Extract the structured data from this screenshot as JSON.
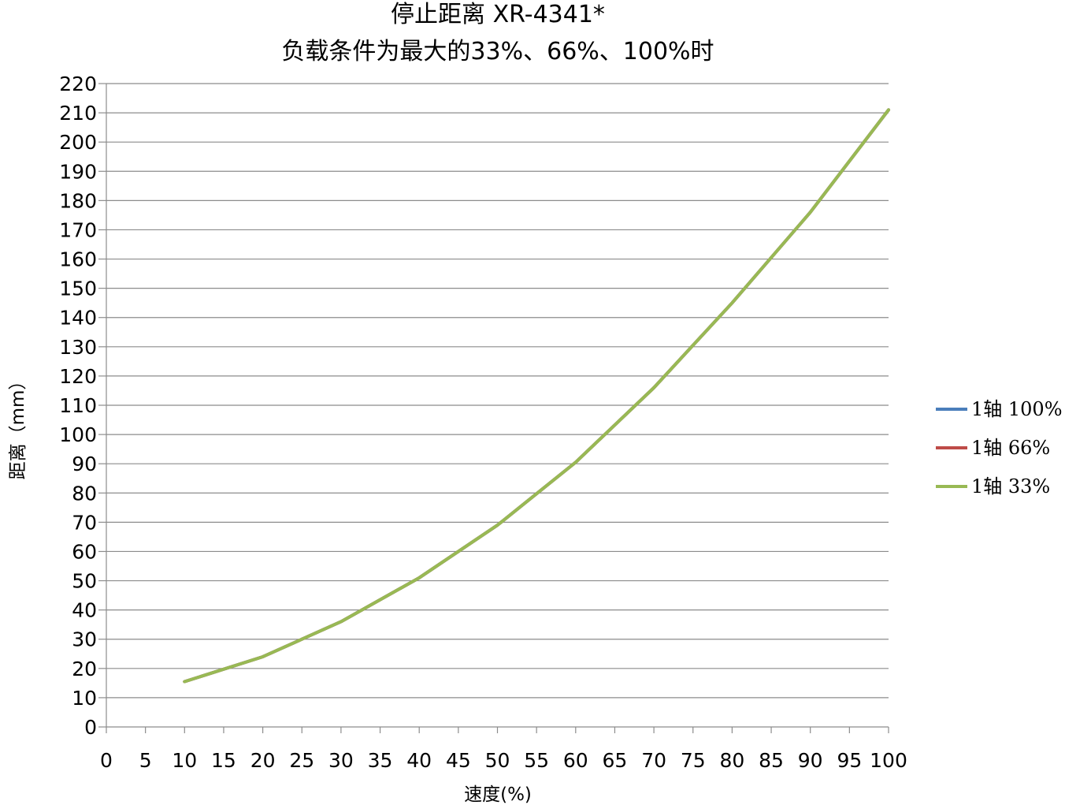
{
  "chart_data": {
    "type": "line",
    "title": "停止距离 XR-4341*",
    "subtitle": "负载条件为最大的33%、66%、100%时",
    "xlabel": "速度(%)",
    "ylabel": "距离（mm）",
    "xlim": [
      0,
      100
    ],
    "ylim": [
      0,
      220
    ],
    "x_ticks": [
      "0",
      "5",
      "10",
      "15",
      "20",
      "25",
      "30",
      "35",
      "40",
      "45",
      "50",
      "55",
      "60",
      "65",
      "70",
      "75",
      "80",
      "85",
      "90",
      "95",
      "100"
    ],
    "y_ticks": [
      "0",
      "10",
      "20",
      "30",
      "40",
      "50",
      "60",
      "70",
      "80",
      "90",
      "100",
      "110",
      "120",
      "130",
      "140",
      "150",
      "160",
      "170",
      "180",
      "190",
      "200",
      "210",
      "220"
    ],
    "grid": "horizontal",
    "legend_position": "right",
    "x": [
      10,
      20,
      30,
      40,
      50,
      60,
      70,
      80,
      90,
      100
    ],
    "series": [
      {
        "name": "1轴 100%",
        "color": "#4a7ebb",
        "values": [
          15.5,
          24,
          36,
          51,
          69,
          90.5,
          116,
          145,
          176,
          211
        ]
      },
      {
        "name": "1轴 66%",
        "color": "#be4b48",
        "values": [
          15.5,
          24,
          36,
          51,
          69,
          90.5,
          116,
          145,
          176,
          211
        ]
      },
      {
        "name": "1轴 33%",
        "color": "#98b954",
        "values": [
          15.5,
          24,
          36,
          51,
          69,
          90.5,
          116,
          145,
          176,
          211
        ]
      }
    ]
  }
}
